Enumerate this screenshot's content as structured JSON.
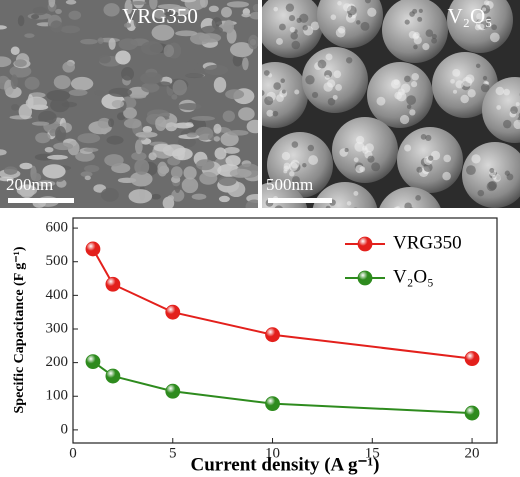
{
  "panels": [
    {
      "label": "VRG350",
      "scale_bar": "200nm"
    },
    {
      "label": "V₂O₅",
      "scale_bar": "500nm"
    }
  ],
  "chart_data": {
    "type": "line",
    "x_label": "Current density (A g⁻¹)",
    "y_label": "Specific Capacitance (F g⁻¹)",
    "x": [
      1,
      2,
      5,
      10,
      20
    ],
    "series": [
      {
        "name": "VRG350",
        "color": "#e3201c",
        "values": [
          538,
          433,
          350,
          283,
          212
        ]
      },
      {
        "name": "V₂O₅",
        "color": "#2e8b1e",
        "values": [
          203,
          160,
          115,
          78,
          50
        ]
      }
    ],
    "xlim": [
      0,
      21.25
    ],
    "xticks": [
      0,
      5,
      10,
      15,
      20
    ],
    "ylim": [
      -39,
      630
    ],
    "yticks": [
      0,
      100,
      200,
      300,
      400,
      500,
      600
    ],
    "legend": "upper right"
  }
}
